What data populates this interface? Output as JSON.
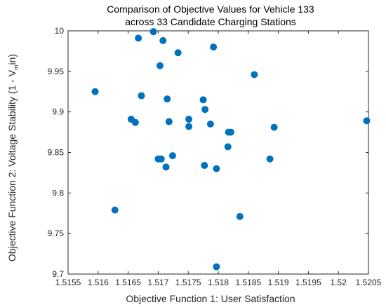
{
  "chart_data": {
    "type": "scatter",
    "title": "Comparison of Objective Values for Vehicle 133",
    "subtitle": "across 33 Candidate Charging Stations",
    "xlabel": "Objective Function 1: User Satisfaction",
    "ylabel_main": "Objective Function 2: Voltage Stability (1 - V",
    "ylabel_sub": "m",
    "ylabel_tail": "in)",
    "xlim": [
      1.5155,
      1.5205
    ],
    "ylim": [
      9.7,
      10.0
    ],
    "xticks": [
      "1.5155",
      "1.516",
      "1.5165",
      "1.517",
      "1.5175",
      "1.518",
      "1.5185",
      "1.519",
      "1.5195",
      "1.52",
      "1.5205"
    ],
    "yticks": [
      "9.7",
      "9.75",
      "9.8",
      "9.85",
      "9.9",
      "9.95",
      "10"
    ],
    "grid": false,
    "marker_color": "#0072BD",
    "points": [
      {
        "x": 1.51595,
        "y": 9.925
      },
      {
        "x": 1.51628,
        "y": 9.779
      },
      {
        "x": 1.51655,
        "y": 9.891
      },
      {
        "x": 1.51662,
        "y": 9.887
      },
      {
        "x": 1.51667,
        "y": 9.991
      },
      {
        "x": 1.51672,
        "y": 9.92
      },
      {
        "x": 1.51692,
        "y": 9.999
      },
      {
        "x": 1.517,
        "y": 9.842
      },
      {
        "x": 1.51703,
        "y": 9.957
      },
      {
        "x": 1.51705,
        "y": 9.842
      },
      {
        "x": 1.51708,
        "y": 9.988
      },
      {
        "x": 1.51713,
        "y": 9.832
      },
      {
        "x": 1.51715,
        "y": 9.916
      },
      {
        "x": 1.51718,
        "y": 9.888
      },
      {
        "x": 1.51724,
        "y": 9.846
      },
      {
        "x": 1.51733,
        "y": 9.973
      },
      {
        "x": 1.51751,
        "y": 9.891
      },
      {
        "x": 1.51751,
        "y": 9.882
      },
      {
        "x": 1.51775,
        "y": 9.915
      },
      {
        "x": 1.51777,
        "y": 9.834
      },
      {
        "x": 1.51778,
        "y": 9.903
      },
      {
        "x": 1.51787,
        "y": 9.885
      },
      {
        "x": 1.51792,
        "y": 9.98
      },
      {
        "x": 1.51797,
        "y": 9.83
      },
      {
        "x": 1.51797,
        "y": 9.709
      },
      {
        "x": 1.51816,
        "y": 9.857
      },
      {
        "x": 1.51817,
        "y": 9.875
      },
      {
        "x": 1.51821,
        "y": 9.875
      },
      {
        "x": 1.51836,
        "y": 9.771
      },
      {
        "x": 1.5186,
        "y": 9.946
      },
      {
        "x": 1.51886,
        "y": 9.842
      },
      {
        "x": 1.51893,
        "y": 9.881
      },
      {
        "x": 1.52047,
        "y": 9.889
      }
    ]
  }
}
